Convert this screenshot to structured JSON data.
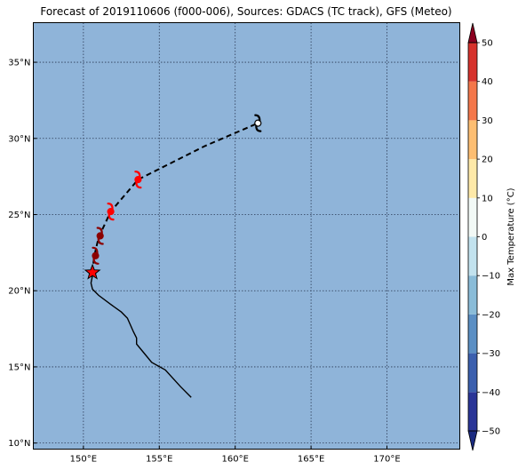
{
  "title": "Forecast of 2019110606 (f000-006), Sources: GDACS (TC track), GFS (Meteo)",
  "map": {
    "background_color": "#8fb4d9",
    "lon_range": [
      146.7,
      174.8
    ],
    "lat_range": [
      9.6,
      37.6
    ],
    "lon_ticks": [
      150,
      155,
      160,
      165,
      170
    ],
    "lat_ticks": [
      10,
      15,
      20,
      25,
      30,
      35
    ],
    "lon_tick_labels": [
      "150°E",
      "155°E",
      "160°E",
      "165°E",
      "170°E"
    ],
    "lat_tick_labels": [
      "10°N",
      "15°N",
      "20°N",
      "25°N",
      "30°N",
      "35°N"
    ],
    "grid": true
  },
  "past_track": {
    "color": "#000000",
    "points": [
      [
        157.1,
        13.0
      ],
      [
        156.4,
        13.7
      ],
      [
        155.4,
        14.8
      ],
      [
        154.5,
        15.3
      ],
      [
        154.0,
        15.9
      ],
      [
        153.5,
        16.5
      ],
      [
        153.5,
        16.9
      ],
      [
        153.3,
        17.3
      ],
      [
        152.9,
        18.2
      ],
      [
        152.5,
        18.6
      ],
      [
        151.8,
        19.1
      ],
      [
        151.0,
        19.7
      ],
      [
        150.6,
        20.1
      ],
      [
        150.5,
        20.5
      ],
      [
        150.6,
        21.0
      ]
    ]
  },
  "forecast_track": {
    "color": "#000000",
    "style": "dashed",
    "points": [
      [
        150.6,
        21.2
      ],
      [
        150.7,
        22.2
      ],
      [
        151.0,
        23.5
      ],
      [
        151.8,
        25.2
      ],
      [
        153.6,
        27.3
      ],
      [
        158.0,
        29.5
      ],
      [
        161.5,
        31.0
      ]
    ]
  },
  "current_position": {
    "lon": 150.6,
    "lat": 21.2,
    "marker": "star",
    "color": "#ff0000"
  },
  "storm_symbols": [
    {
      "lon": 150.8,
      "lat": 22.3,
      "color": "#8b0000"
    },
    {
      "lon": 151.1,
      "lat": 23.6,
      "color": "#8b0000"
    },
    {
      "lon": 151.8,
      "lat": 25.2,
      "color": "#ff0000"
    },
    {
      "lon": 153.6,
      "lat": 27.3,
      "color": "#ff0000"
    },
    {
      "lon": 161.5,
      "lat": 31.0,
      "color": "#ffffff"
    }
  ],
  "colorbar": {
    "label": "Max Temperature (°C)",
    "ticks": [
      -50,
      -40,
      -30,
      -20,
      -10,
      0,
      10,
      20,
      30,
      40,
      50
    ],
    "tick_labels": [
      "−50",
      "−40",
      "−30",
      "−20",
      "−10",
      "0",
      "10",
      "20",
      "30",
      "40",
      "50"
    ],
    "colors": [
      "#2a3597",
      "#3b5fae",
      "#5b8fc4",
      "#8abcd8",
      "#c2e2ee",
      "#f2f9f6",
      "#fee9a8",
      "#fdbe72",
      "#f4774a",
      "#d6322c",
      "#a70a27"
    ],
    "under_color": "#1a2a80",
    "over_color": "#8b0020"
  }
}
